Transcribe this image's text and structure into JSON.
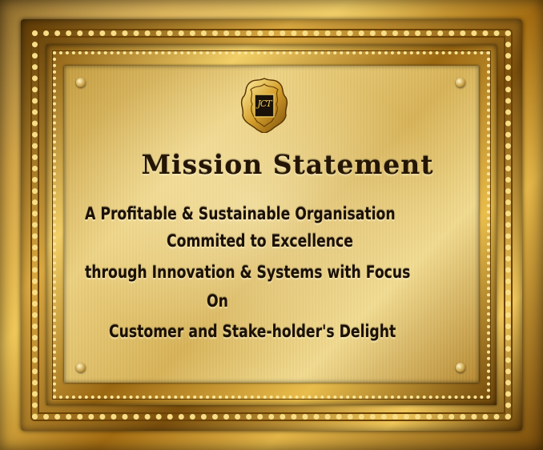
{
  "plaque": {
    "emblem_monogram": "JCT",
    "title": "Mission Statement",
    "lines": [
      "A Profitable & Sustainable Organisation",
      "Commited to Excellence",
      "through Innovation & Systems with Focus",
      "On",
      "Customer and Stake-holder's Delight"
    ]
  },
  "colors": {
    "gold_frame": "#d9a840",
    "brass_plate": "#e8c96e",
    "engraved_text": "#1b1003"
  },
  "icons": [
    "ornamental-crest-icon",
    "screw-icon"
  ]
}
